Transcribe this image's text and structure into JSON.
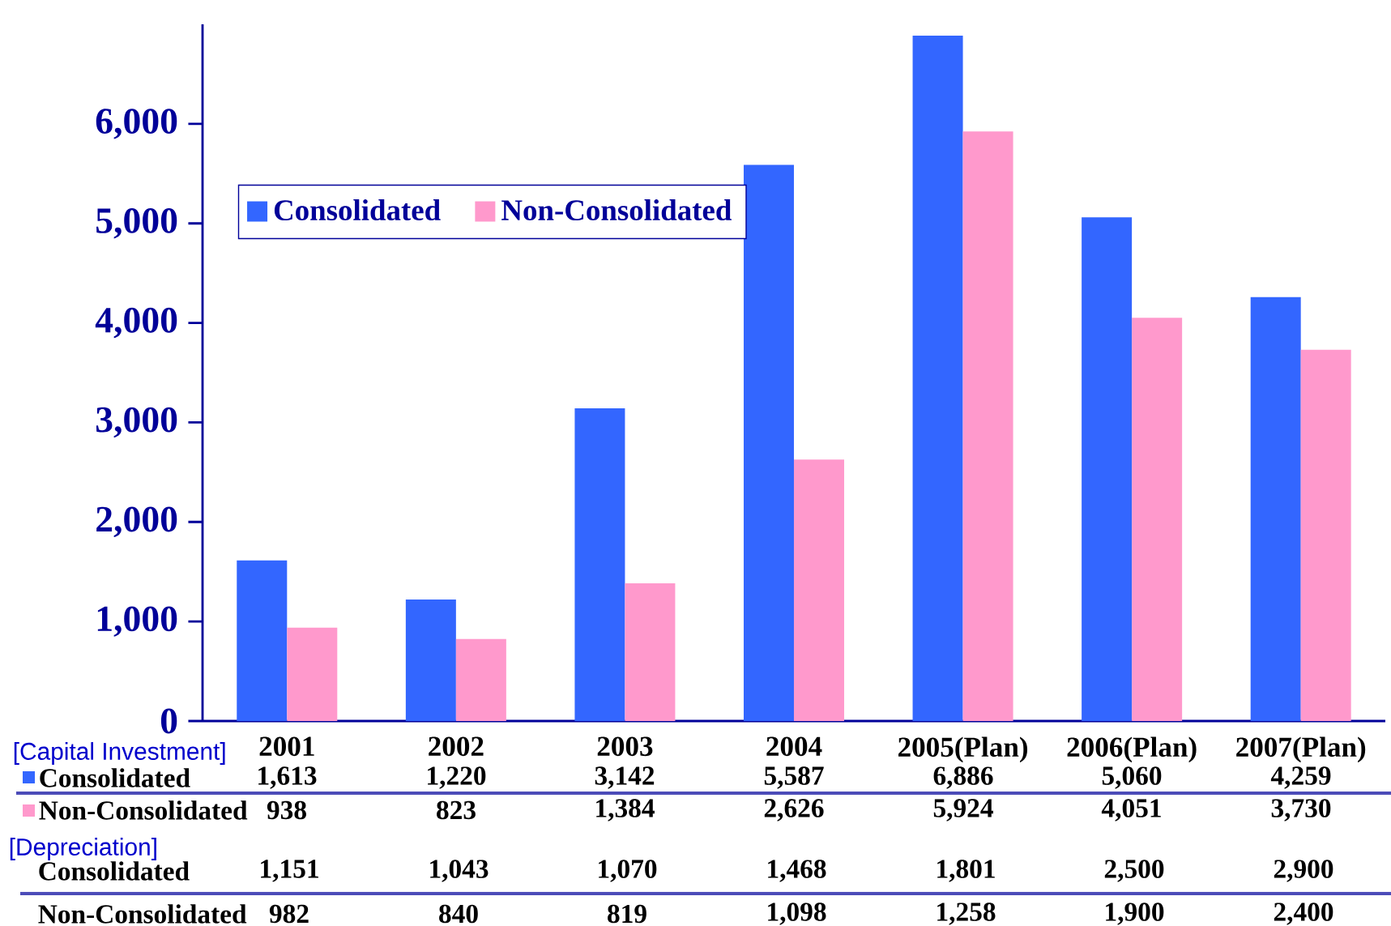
{
  "chart_data": {
    "type": "bar",
    "categories": [
      "2001",
      "2002",
      "2003",
      "2004",
      "2005(Plan)",
      "2006(Plan)",
      "2007(Plan)"
    ],
    "series": [
      {
        "name": "Consolidated",
        "color": "#3366ff",
        "values": [
          1613,
          1220,
          3142,
          5587,
          6886,
          5060,
          4259
        ],
        "value_labels": [
          "1,613",
          "1,220",
          "3,142",
          "5,587",
          "6,886",
          "5,060",
          "4,259"
        ]
      },
      {
        "name": "Non-Consolidated",
        "color": "#ff99cc",
        "values": [
          938,
          823,
          1384,
          2626,
          5924,
          4051,
          3730
        ],
        "value_labels": [
          "938",
          "823",
          "1,384",
          "2,626",
          "5,924",
          "4,051",
          "3,730"
        ]
      }
    ],
    "ylim": [
      0,
      7000
    ],
    "yticks": [
      0,
      {
        "value": 1000,
        "label": "1,000"
      },
      {
        "value": 2000,
        "label": "2,000"
      },
      {
        "value": 3000,
        "label": "3,000"
      },
      {
        "value": 4000,
        "label": "4,000"
      },
      {
        "value": 5000,
        "label": "5,000"
      },
      {
        "value": 6000,
        "label": "6,000"
      }
    ],
    "legend": "top left",
    "annotations": [
      "[Capital Investment]",
      "[Depreciation]",
      "Consolidated",
      "1,151",
      "1,043",
      "1,070",
      "1,468",
      "1,801",
      "2,500",
      "2,900",
      "Non-Consolidated",
      "982",
      "840",
      "819",
      "1,098",
      "1,258",
      "1,900",
      "2,400"
    ]
  }
}
